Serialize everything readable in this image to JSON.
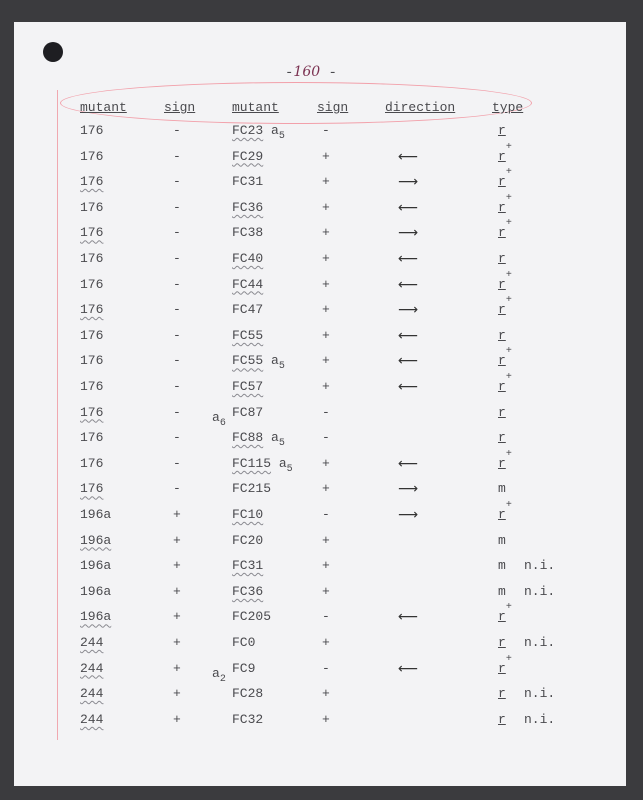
{
  "page_number": {
    "prefix": "-",
    "number": "160",
    "suffix": "-"
  },
  "headers": [
    "mutant",
    "sign",
    "mutant",
    "sign",
    "direction",
    "type"
  ],
  "rows": [
    {
      "m1": "176",
      "w1": false,
      "s1": "-",
      "pre": "",
      "pre_sub": "",
      "m2": "FC23",
      "w2": true,
      "suf": "a",
      "suf_sub": "5",
      "s2": "-",
      "dir": "",
      "type": "r",
      "plus": "",
      "ni": ""
    },
    {
      "m1": "176",
      "w1": false,
      "s1": "-",
      "pre": "",
      "pre_sub": "",
      "m2": "FC29",
      "w2": true,
      "suf": "",
      "suf_sub": "",
      "s2": "+",
      "dir": "left",
      "type": "r",
      "plus": "+",
      "ni": ""
    },
    {
      "m1": "176",
      "w1": true,
      "s1": "-",
      "pre": "",
      "pre_sub": "",
      "m2": "FC31",
      "w2": false,
      "suf": "",
      "suf_sub": "",
      "s2": "+",
      "dir": "right",
      "type": "r",
      "plus": "+",
      "ni": ""
    },
    {
      "m1": "176",
      "w1": false,
      "s1": "-",
      "pre": "",
      "pre_sub": "",
      "m2": "FC36",
      "w2": true,
      "suf": "",
      "suf_sub": "",
      "s2": "+",
      "dir": "left",
      "type": "r",
      "plus": "+",
      "ni": ""
    },
    {
      "m1": "176",
      "w1": true,
      "s1": "-",
      "pre": "",
      "pre_sub": "",
      "m2": "FC38",
      "w2": false,
      "suf": "",
      "suf_sub": "",
      "s2": "+",
      "dir": "right",
      "type": "r",
      "plus": "+",
      "ni": ""
    },
    {
      "m1": "176",
      "w1": false,
      "s1": "-",
      "pre": "",
      "pre_sub": "",
      "m2": "FC40",
      "w2": true,
      "suf": "",
      "suf_sub": "",
      "s2": "+",
      "dir": "left",
      "type": "r",
      "plus": "",
      "ni": ""
    },
    {
      "m1": "176",
      "w1": false,
      "s1": "-",
      "pre": "",
      "pre_sub": "",
      "m2": "FC44",
      "w2": true,
      "suf": "",
      "suf_sub": "",
      "s2": "+",
      "dir": "left",
      "type": "r",
      "plus": "+",
      "ni": ""
    },
    {
      "m1": "176",
      "w1": true,
      "s1": "-",
      "pre": "",
      "pre_sub": "",
      "m2": "FC47",
      "w2": false,
      "suf": "",
      "suf_sub": "",
      "s2": "+",
      "dir": "right",
      "type": "r",
      "plus": "+",
      "ni": ""
    },
    {
      "m1": "176",
      "w1": false,
      "s1": "-",
      "pre": "",
      "pre_sub": "",
      "m2": "FC55",
      "w2": true,
      "suf": "",
      "suf_sub": "",
      "s2": "+",
      "dir": "left",
      "type": "r",
      "plus": "",
      "ni": ""
    },
    {
      "m1": "176",
      "w1": false,
      "s1": "-",
      "pre": "",
      "pre_sub": "",
      "m2": "FC55",
      "w2": true,
      "suf": "a",
      "suf_sub": "5",
      "s2": "+",
      "dir": "left",
      "type": "r",
      "plus": "+",
      "ni": ""
    },
    {
      "m1": "176",
      "w1": false,
      "s1": "-",
      "pre": "",
      "pre_sub": "",
      "m2": "FC57",
      "w2": true,
      "suf": "",
      "suf_sub": "",
      "s2": "+",
      "dir": "left",
      "type": "r",
      "plus": "+",
      "ni": ""
    },
    {
      "m1": "176",
      "w1": true,
      "s1": "-",
      "pre": "a",
      "pre_sub": "6",
      "m2": "FC87",
      "w2": false,
      "suf": "",
      "suf_sub": "",
      "s2": "-",
      "dir": "",
      "type": "r",
      "plus": "",
      "ni": ""
    },
    {
      "m1": "176",
      "w1": false,
      "s1": "-",
      "pre": "",
      "pre_sub": "",
      "m2": "FC88",
      "w2": true,
      "suf": "a",
      "suf_sub": "5",
      "s2": "-",
      "dir": "",
      "type": "r",
      "plus": "",
      "ni": ""
    },
    {
      "m1": "176",
      "w1": false,
      "s1": "-",
      "pre": "",
      "pre_sub": "",
      "m2": "FC115",
      "w2": true,
      "suf": "a",
      "suf_sub": "5",
      "s2": "+",
      "dir": "left",
      "type": "r",
      "plus": "+",
      "ni": ""
    },
    {
      "m1": "176",
      "w1": true,
      "s1": "-",
      "pre": "",
      "pre_sub": "",
      "m2": "FC215",
      "w2": false,
      "suf": "",
      "suf_sub": "",
      "s2": "+",
      "dir": "right",
      "type": "m",
      "plus": "",
      "ni": ""
    },
    {
      "m1": "196a",
      "w1": false,
      "s1": "+",
      "pre": "",
      "pre_sub": "",
      "m2": "FC10",
      "w2": true,
      "suf": "",
      "suf_sub": "",
      "s2": "-",
      "dir": "right",
      "type": "r",
      "plus": "+",
      "ni": ""
    },
    {
      "m1": "196a",
      "w1": true,
      "s1": "+",
      "pre": "",
      "pre_sub": "",
      "m2": "FC20",
      "w2": false,
      "suf": "",
      "suf_sub": "",
      "s2": "+",
      "dir": "",
      "type": "m",
      "plus": "",
      "ni": ""
    },
    {
      "m1": "196a",
      "w1": false,
      "s1": "+",
      "pre": "",
      "pre_sub": "",
      "m2": "FC31",
      "w2": true,
      "suf": "",
      "suf_sub": "",
      "s2": "+",
      "dir": "",
      "type": "m",
      "plus": "",
      "ni": "n.i."
    },
    {
      "m1": "196a",
      "w1": false,
      "s1": "+",
      "pre": "",
      "pre_sub": "",
      "m2": "FC36",
      "w2": true,
      "suf": "",
      "suf_sub": "",
      "s2": "+",
      "dir": "",
      "type": "m",
      "plus": "",
      "ni": "n.i."
    },
    {
      "m1": "196a",
      "w1": true,
      "s1": "+",
      "pre": "",
      "pre_sub": "",
      "m2": "FC205",
      "w2": false,
      "suf": "",
      "suf_sub": "",
      "s2": "-",
      "dir": "left",
      "type": "r",
      "plus": "+",
      "ni": ""
    },
    {
      "m1": "244",
      "w1": true,
      "s1": "+",
      "pre": "",
      "pre_sub": "",
      "m2": "FC0",
      "w2": false,
      "suf": "",
      "suf_sub": "",
      "s2": "+",
      "dir": "",
      "type": "r",
      "plus": "",
      "ni": "n.i."
    },
    {
      "m1": "244",
      "w1": true,
      "s1": "+",
      "pre": "a",
      "pre_sub": "2",
      "m2": "FC9",
      "w2": false,
      "suf": "",
      "suf_sub": "",
      "s2": "-",
      "dir": "left",
      "type": "r",
      "plus": "+",
      "ni": ""
    },
    {
      "m1": "244",
      "w1": true,
      "s1": "+",
      "pre": "",
      "pre_sub": "",
      "m2": "FC28",
      "w2": false,
      "suf": "",
      "suf_sub": "",
      "s2": "+",
      "dir": "",
      "type": "r",
      "plus": "",
      "ni": "n.i."
    },
    {
      "m1": "244",
      "w1": true,
      "s1": "+",
      "pre": "",
      "pre_sub": "",
      "m2": "FC32",
      "w2": false,
      "suf": "",
      "suf_sub": "",
      "s2": "+",
      "dir": "",
      "type": "r",
      "plus": "",
      "ni": "n.i."
    }
  ],
  "arrows": {
    "left": "⟵",
    "right": "⟶"
  },
  "colors": {
    "paper": "#f3f3f5",
    "background": "#3b3b3e",
    "red_pencil": "#f2a0aa",
    "ink": "#4a4a4e"
  }
}
